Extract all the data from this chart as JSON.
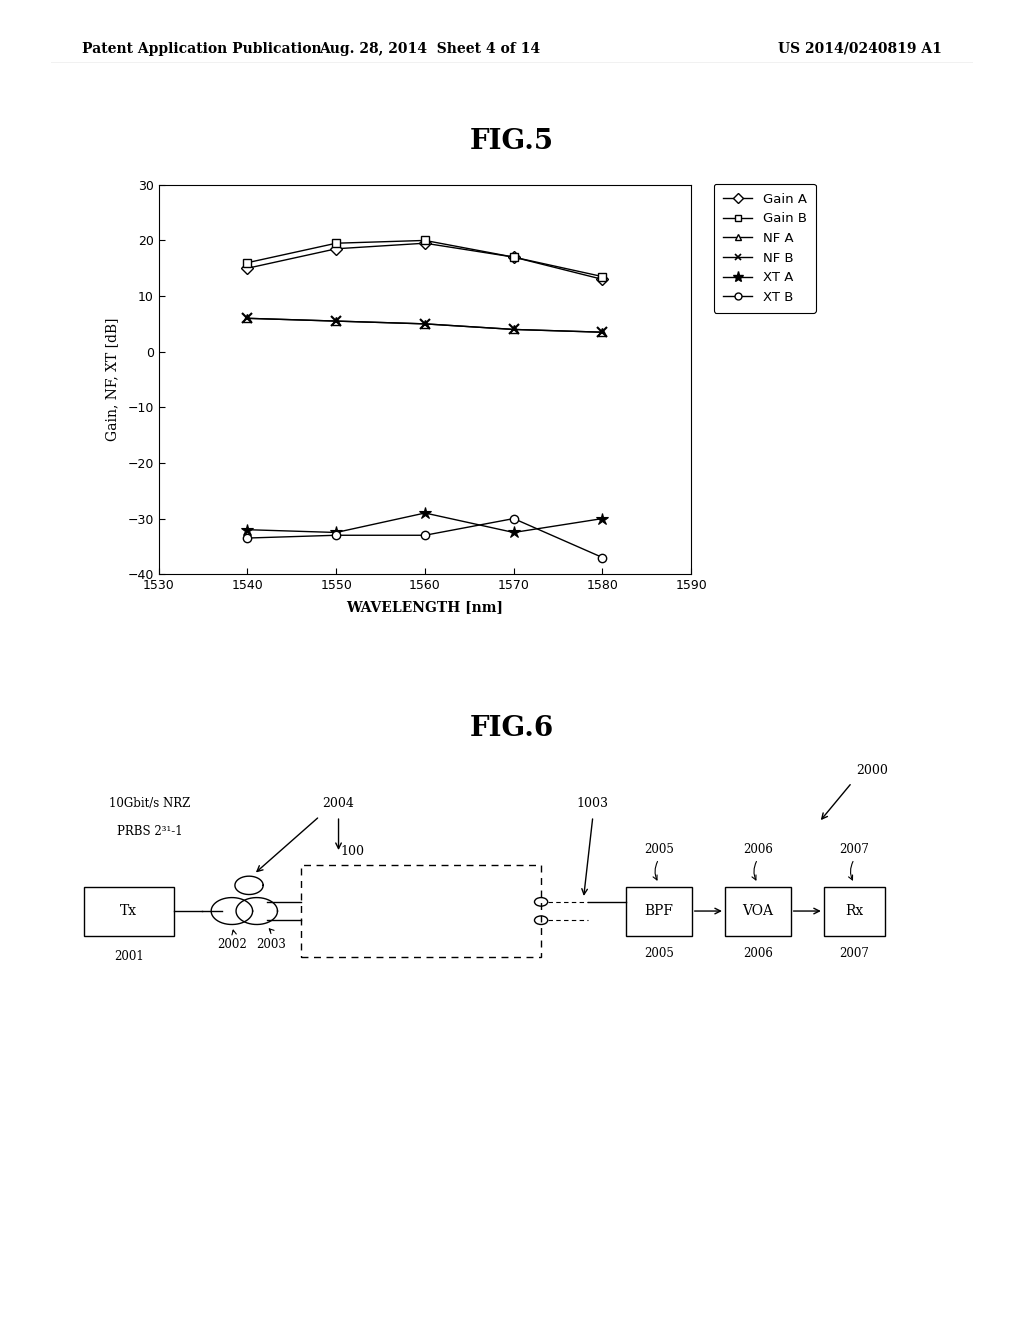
{
  "header_left": "Patent Application Publication",
  "header_mid": "Aug. 28, 2014  Sheet 4 of 14",
  "header_right": "US 2014/0240819 A1",
  "fig5_title": "FIG.5",
  "fig5_xlabel": "WAVELENGTH [nm]",
  "fig5_ylabel": "Gain, NF, XT [dB]",
  "fig5_xlim": [
    1530,
    1590
  ],
  "fig5_ylim": [
    -40,
    30
  ],
  "fig5_xticks": [
    1530,
    1540,
    1550,
    1560,
    1570,
    1580,
    1590
  ],
  "fig5_yticks": [
    -40,
    -30,
    -20,
    -10,
    0,
    10,
    20,
    30
  ],
  "wavelengths": [
    1540,
    1550,
    1560,
    1570,
    1580
  ],
  "gain_a": [
    15.0,
    18.5,
    19.5,
    17.0,
    13.0
  ],
  "gain_b": [
    16.0,
    19.5,
    20.0,
    17.0,
    13.5
  ],
  "nf_a": [
    6.0,
    5.5,
    5.0,
    4.0,
    3.5
  ],
  "nf_b": [
    6.0,
    5.5,
    5.0,
    4.0,
    3.5
  ],
  "xt_a": [
    -32.0,
    -32.5,
    -29.0,
    -32.5,
    -30.0
  ],
  "xt_b": [
    -33.5,
    -33.0,
    -33.0,
    -30.0,
    -37.0
  ],
  "fig6_title": "FIG.6",
  "fig6_label_2000": "2000",
  "fig6_label_2001": "2001",
  "fig6_label_2002": "2002",
  "fig6_label_2003": "2003",
  "fig6_label_2004": "2004",
  "fig6_label_100": "100",
  "fig6_label_1003": "1003",
  "fig6_label_2005": "2005",
  "fig6_label_2006": "2006",
  "fig6_label_2007": "2007",
  "fig6_tx_label": "Tx",
  "fig6_bpf_label": "BPF",
  "fig6_voa_label": "VOA",
  "fig6_rx_label": "Rx",
  "fig6_text_top": "10Gbit/s NRZ",
  "fig6_text_bot": "PRBS 2³¹-1",
  "background_color": "#ffffff",
  "line_color": "#000000"
}
